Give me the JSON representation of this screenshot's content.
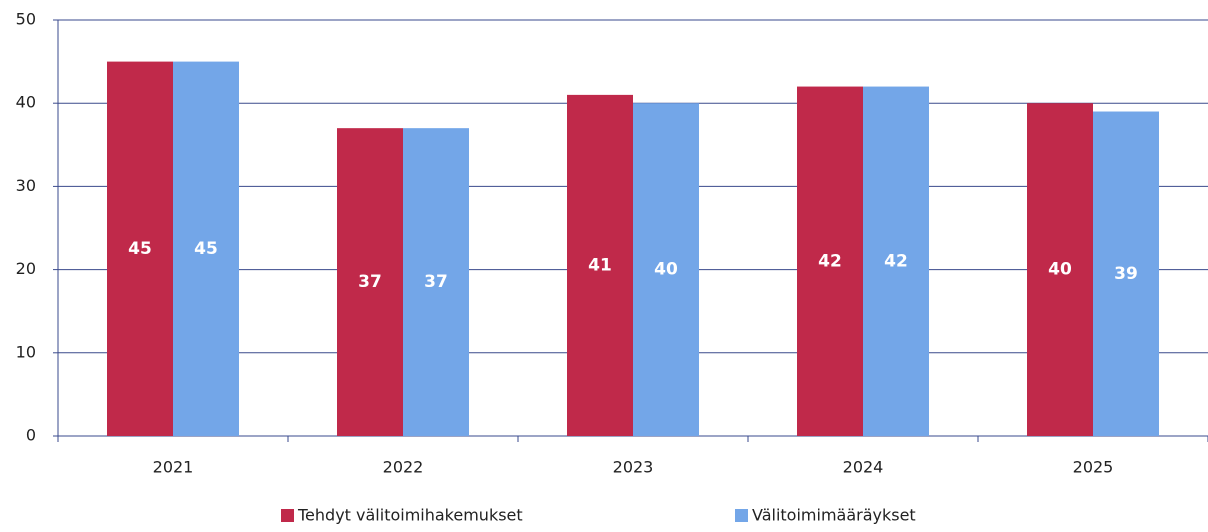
{
  "chart_data": {
    "type": "bar",
    "categories": [
      "2021",
      "2022",
      "2023",
      "2024",
      "2025"
    ],
    "series": [
      {
        "name": "Tehdyt välitoimihakemukset",
        "color": "#c0294a",
        "values": [
          45,
          37,
          41,
          42,
          40
        ]
      },
      {
        "name": "Välitoimimääräykset",
        "color": "#73a6e8",
        "values": [
          45,
          37,
          40,
          42,
          39
        ]
      }
    ],
    "ylim": [
      0,
      50
    ],
    "yticks": [
      0,
      10,
      20,
      30,
      40,
      50
    ],
    "grid": true,
    "legend": "bottom"
  }
}
